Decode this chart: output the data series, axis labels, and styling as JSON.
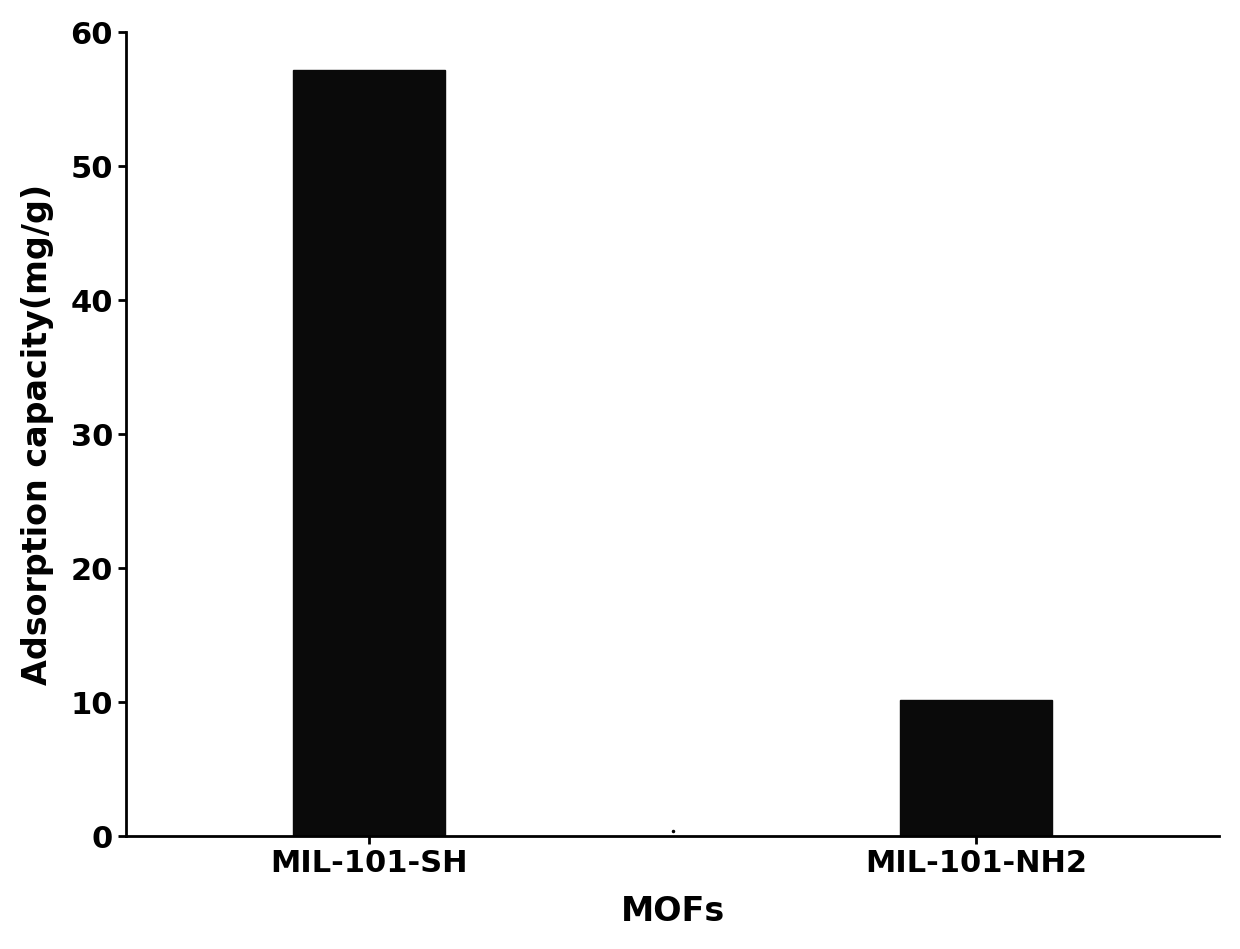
{
  "categories": [
    "MIL-101-SH",
    "MIL-101-NH2"
  ],
  "values": [
    57.2,
    10.2
  ],
  "bar_color": "#0a0a0a",
  "bar_width": 0.5,
  "xlabel": "MOFs",
  "ylabel": "Adsorption capacity(mg/g)",
  "ylim": [
    0,
    60
  ],
  "yticks": [
    0,
    10,
    20,
    30,
    40,
    50,
    60
  ],
  "title": "",
  "xlabel_fontsize": 24,
  "ylabel_fontsize": 24,
  "tick_fontsize": 22,
  "background_color": "#ffffff",
  "bar_positions": [
    1,
    3
  ],
  "xlim": [
    0.2,
    3.8
  ]
}
